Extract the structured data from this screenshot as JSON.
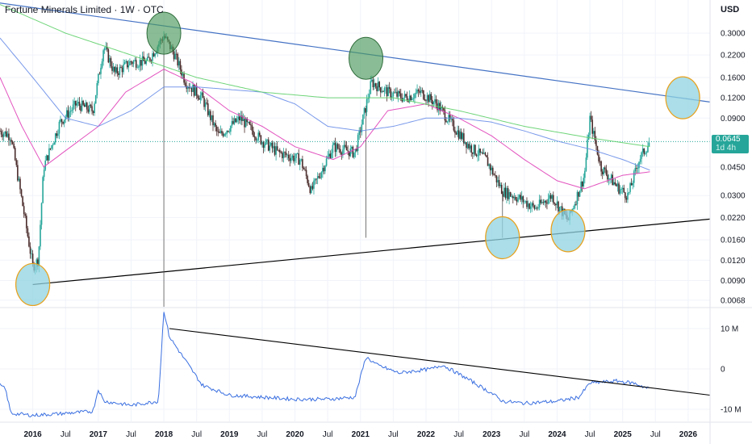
{
  "header": {
    "title": "Fortune Minerals Limited · 1W · OTC",
    "currency": "USD"
  },
  "price_badge": {
    "price": "0.0645",
    "countdown": "1d 4h"
  },
  "colors": {
    "up": "#26a69a",
    "down": "#4a2b2b",
    "ma_short": "#e040b8",
    "ma_mid": "#6a8ee8",
    "ma_long": "#5fd06a",
    "resistance": "#4472c4",
    "support": "#000000",
    "obv": "#3a6fe0",
    "circle_top_fill": "#4c9a5c",
    "circle_bottom_fill": "#8fd3e0",
    "circle_bottom_stroke": "#e8a01a"
  },
  "chart_data": [
    {
      "type": "candlestick",
      "title": "Fortune Minerals Limited · 1W · OTC",
      "y_scale": "log",
      "ylim": [
        0.0062,
        0.48
      ],
      "y_ticks": [
        "0.3000",
        "0.2200",
        "0.1600",
        "0.1200",
        "0.0900",
        "0.0645",
        "0.0450",
        "0.0300",
        "0.0220",
        "0.0160",
        "0.0120",
        "0.0090",
        "0.0068"
      ],
      "x_ticks": [
        "2016",
        "Jul",
        "2017",
        "Jul",
        "2018",
        "Jul",
        "2019",
        "Jul",
        "2020",
        "Jul",
        "2021",
        "Jul",
        "2022",
        "Jul",
        "2023",
        "Jul",
        "2024",
        "Jul",
        "2025",
        "Jul",
        "2026"
      ],
      "xlim": [
        "2015-07",
        "2026-05"
      ],
      "last_price": 0.0645,
      "price_path": [
        [
          "2015-07",
          0.075
        ],
        [
          "2015-09",
          0.07
        ],
        [
          "2015-11",
          0.028
        ],
        [
          "2016-01",
          0.011
        ],
        [
          "2016-02",
          0.012
        ],
        [
          "2016-03",
          0.045
        ],
        [
          "2016-06",
          0.085
        ],
        [
          "2016-09",
          0.11
        ],
        [
          "2016-12",
          0.1
        ],
        [
          "2017-02",
          0.25
        ],
        [
          "2017-04",
          0.17
        ],
        [
          "2017-07",
          0.2
        ],
        [
          "2017-10",
          0.2
        ],
        [
          "2018-01",
          0.29
        ],
        [
          "2018-03",
          0.22
        ],
        [
          "2018-05",
          0.15
        ],
        [
          "2018-08",
          0.12
        ],
        [
          "2018-11",
          0.07
        ],
        [
          "2019-03",
          0.09
        ],
        [
          "2019-07",
          0.065
        ],
        [
          "2019-10",
          0.055
        ],
        [
          "2020-02",
          0.05
        ],
        [
          "2020-04",
          0.032
        ],
        [
          "2020-08",
          0.06
        ],
        [
          "2020-12",
          0.055
        ],
        [
          "2021-03",
          0.15
        ],
        [
          "2021-06",
          0.13
        ],
        [
          "2021-09",
          0.12
        ],
        [
          "2021-12",
          0.13
        ],
        [
          "2022-03",
          0.11
        ],
        [
          "2022-06",
          0.08
        ],
        [
          "2022-09",
          0.06
        ],
        [
          "2022-12",
          0.05
        ],
        [
          "2023-03",
          0.032
        ],
        [
          "2023-06",
          0.029
        ],
        [
          "2023-09",
          0.025
        ],
        [
          "2023-12",
          0.03
        ],
        [
          "2024-03",
          0.021
        ],
        [
          "2024-06",
          0.04
        ],
        [
          "2024-07",
          0.09
        ],
        [
          "2024-09",
          0.045
        ],
        [
          "2024-12",
          0.034
        ],
        [
          "2025-02",
          0.03
        ],
        [
          "2025-04",
          0.05
        ],
        [
          "2025-06",
          0.0645
        ]
      ],
      "moving_averages": [
        {
          "color": "#e040b8",
          "path": [
            [
              "2015-07",
              0.16
            ],
            [
              "2015-11",
              0.08
            ],
            [
              "2016-03",
              0.045
            ],
            [
              "2016-08",
              0.06
            ],
            [
              "2017-01",
              0.08
            ],
            [
              "2017-06",
              0.13
            ],
            [
              "2018-01",
              0.18
            ],
            [
              "2018-06",
              0.15
            ],
            [
              "2019-01",
              0.1
            ],
            [
              "2019-07",
              0.08
            ],
            [
              "2020-01",
              0.06
            ],
            [
              "2020-08",
              0.05
            ],
            [
              "2021-01",
              0.06
            ],
            [
              "2021-06",
              0.1
            ],
            [
              "2022-01",
              0.11
            ],
            [
              "2022-07",
              0.09
            ],
            [
              "2023-01",
              0.07
            ],
            [
              "2023-07",
              0.05
            ],
            [
              "2024-01",
              0.037
            ],
            [
              "2024-06",
              0.033
            ],
            [
              "2025-01",
              0.04
            ],
            [
              "2025-06",
              0.042
            ]
          ]
        },
        {
          "color": "#6a8ee8",
          "path": [
            [
              "2015-07",
              0.28
            ],
            [
              "2016-01",
              0.16
            ],
            [
              "2016-07",
              0.09
            ],
            [
              "2017-01",
              0.08
            ],
            [
              "2017-07",
              0.1
            ],
            [
              "2018-01",
              0.14
            ],
            [
              "2018-07",
              0.14
            ],
            [
              "2019-07",
              0.13
            ],
            [
              "2020-01",
              0.11
            ],
            [
              "2020-07",
              0.08
            ],
            [
              "2021-01",
              0.075
            ],
            [
              "2021-07",
              0.08
            ],
            [
              "2022-01",
              0.09
            ],
            [
              "2022-07",
              0.09
            ],
            [
              "2023-01",
              0.085
            ],
            [
              "2023-07",
              0.075
            ],
            [
              "2024-01",
              0.065
            ],
            [
              "2024-07",
              0.058
            ],
            [
              "2025-01",
              0.05
            ],
            [
              "2025-06",
              0.043
            ]
          ]
        },
        {
          "color": "#5fd06a",
          "path": [
            [
              "2015-07",
              0.45
            ],
            [
              "2016-07",
              0.3
            ],
            [
              "2017-07",
              0.22
            ],
            [
              "2018-07",
              0.16
            ],
            [
              "2019-07",
              0.13
            ],
            [
              "2020-07",
              0.12
            ],
            [
              "2021-07",
              0.12
            ],
            [
              "2022-07",
              0.1
            ],
            [
              "2023-07",
              0.08
            ],
            [
              "2024-07",
              0.068
            ],
            [
              "2025-06",
              0.06
            ]
          ]
        }
      ],
      "trendlines": [
        {
          "name": "",
          "color": "#4472c4",
          "from": [
            "2015-07",
            0.46
          ],
          "to": [
            "2026-05",
            0.113
          ]
        },
        {
          "name": "",
          "color": "#000000",
          "from": [
            "2016-01",
            0.0085
          ],
          "to": [
            "2026-05",
            0.0215
          ]
        }
      ],
      "vertical_lines": [
        "2018-01",
        "2021-02",
        "2023-03"
      ],
      "highlight_circles": [
        {
          "at": [
            "2018-01",
            0.3
          ],
          "kind": "top"
        },
        {
          "at": [
            "2021-02",
            0.21
          ],
          "kind": "top"
        },
        {
          "at": [
            "2016-01",
            0.0085
          ],
          "kind": "bottom"
        },
        {
          "at": [
            "2023-03",
            0.0165
          ],
          "kind": "bottom"
        },
        {
          "at": [
            "2024-03",
            0.0182
          ],
          "kind": "bottom"
        },
        {
          "at": [
            "2025-12",
            0.12
          ],
          "kind": "bottom"
        }
      ]
    },
    {
      "type": "line",
      "title": "",
      "y_ticks": [
        "10 M",
        "0",
        "-10 M"
      ],
      "ylim": [
        -13,
        15
      ],
      "series": [
        {
          "name": "",
          "values": [
            [
              "2015-07",
              -4
            ],
            [
              "2015-08",
              -5
            ],
            [
              "2015-09",
              -11
            ],
            [
              "2016-01",
              -11.5
            ],
            [
              "2016-07",
              -11
            ],
            [
              "2016-12",
              -10.5
            ],
            [
              "2017-01",
              -5
            ],
            [
              "2017-02",
              -8
            ],
            [
              "2017-07",
              -9
            ],
            [
              "2017-12",
              -8
            ],
            [
              "2018-01",
              14.5
            ],
            [
              "2018-02",
              8
            ],
            [
              "2018-05",
              2
            ],
            [
              "2018-08",
              -4
            ],
            [
              "2019-01",
              -6.5
            ],
            [
              "2019-07",
              -7
            ],
            [
              "2020-01",
              -7.5
            ],
            [
              "2020-07",
              -7.5
            ],
            [
              "2020-12",
              -7
            ],
            [
              "2021-02",
              3
            ],
            [
              "2021-04",
              1
            ],
            [
              "2021-08",
              -1
            ],
            [
              "2022-02",
              0
            ],
            [
              "2022-04",
              1
            ],
            [
              "2022-08",
              -2
            ],
            [
              "2023-01",
              -6
            ],
            [
              "2023-03",
              -8
            ],
            [
              "2023-07",
              -8.5
            ],
            [
              "2024-01",
              -8
            ],
            [
              "2024-05",
              -7
            ],
            [
              "2024-07",
              -3.5
            ],
            [
              "2024-12",
              -3
            ],
            [
              "2025-03",
              -3.5
            ],
            [
              "2025-06",
              -5
            ]
          ]
        }
      ],
      "trendlines": [
        {
          "name": "",
          "color": "#000000",
          "from": [
            "2018-02",
            10
          ],
          "to": [
            "2026-05",
            -6.5
          ]
        }
      ]
    }
  ]
}
